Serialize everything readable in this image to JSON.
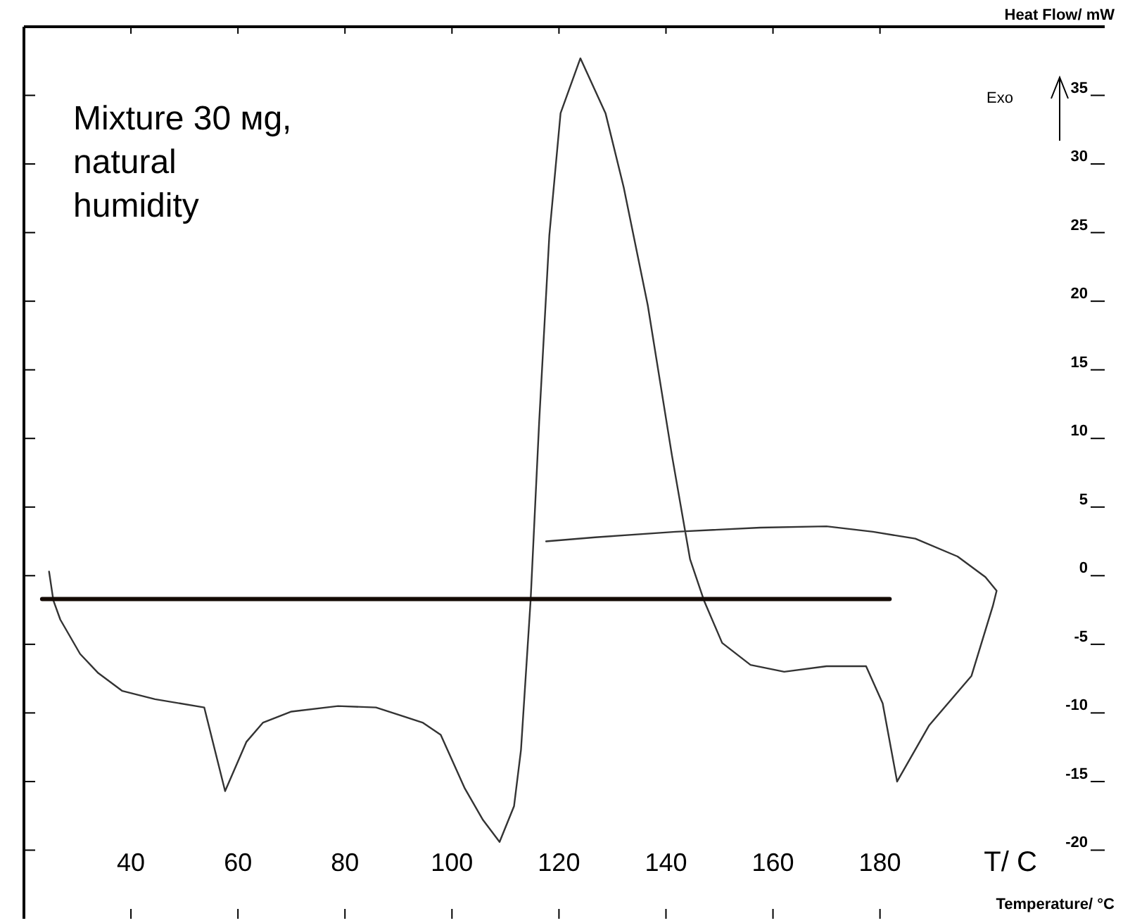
{
  "chart_data": {
    "type": "line",
    "xlabel": "Temperature/ °C",
    "ylabel": "Heat Flow/ mW",
    "annotations": [
      "Mixture 30 мg, natural humidity",
      "Exo",
      "T/ C"
    ],
    "xlim": [
      20,
      222
    ],
    "ylim": [
      -25,
      40
    ],
    "xticks": [
      40,
      60,
      80,
      100,
      120,
      140,
      160,
      180
    ],
    "yticks": [
      -20,
      -15,
      -10,
      -5,
      0,
      5,
      10,
      15,
      20,
      25,
      30,
      35
    ],
    "grid": false,
    "marker": "none",
    "line_style": "solid",
    "series": [
      {
        "color": "#333333",
        "x": [
          24.7,
          25.5,
          26.8,
          30.5,
          33.9,
          38.4,
          44.5,
          53.7,
          57.6,
          61.6,
          64.7,
          70.0,
          78.7,
          85.8,
          94.5,
          97.9,
          102.4,
          105.8,
          108.9,
          111.6,
          112.9,
          114.7,
          116.3,
          118.2,
          120.3,
          124.0,
          128.7,
          132.1,
          136.6,
          141.1,
          144.5,
          147.1,
          150.5,
          155.8,
          162.1,
          170.0,
          177.4,
          180.5,
          183.2,
          189.2,
          197.1,
          201.1,
          201.8,
          199.7,
          194.5,
          186.6,
          178.7,
          170.0,
          157.6,
          141.8,
          126.8,
          117.6
        ],
        "values": [
          0.3,
          -1.8,
          -3.2,
          -5.7,
          -7.1,
          -8.4,
          -9.0,
          -9.6,
          -15.7,
          -12.1,
          -10.7,
          -9.9,
          -9.5,
          -9.6,
          -10.7,
          -11.6,
          -15.5,
          -17.8,
          -19.4,
          -16.8,
          -12.7,
          -1.8,
          11.2,
          24.8,
          33.7,
          37.7,
          33.7,
          28.3,
          19.7,
          8.8,
          1.2,
          -1.8,
          -4.9,
          -6.5,
          -7.0,
          -6.6,
          -6.6,
          -9.3,
          -15.0,
          -10.9,
          -7.3,
          -2.2,
          -1.1,
          -0.1,
          1.4,
          2.7,
          3.2,
          3.6,
          3.5,
          3.2,
          2.8,
          2.5
        ]
      },
      {
        "color": "#140a05",
        "x": [
          23.4,
          181.8
        ],
        "values": [
          -1.7,
          -1.7
        ]
      }
    ]
  }
}
